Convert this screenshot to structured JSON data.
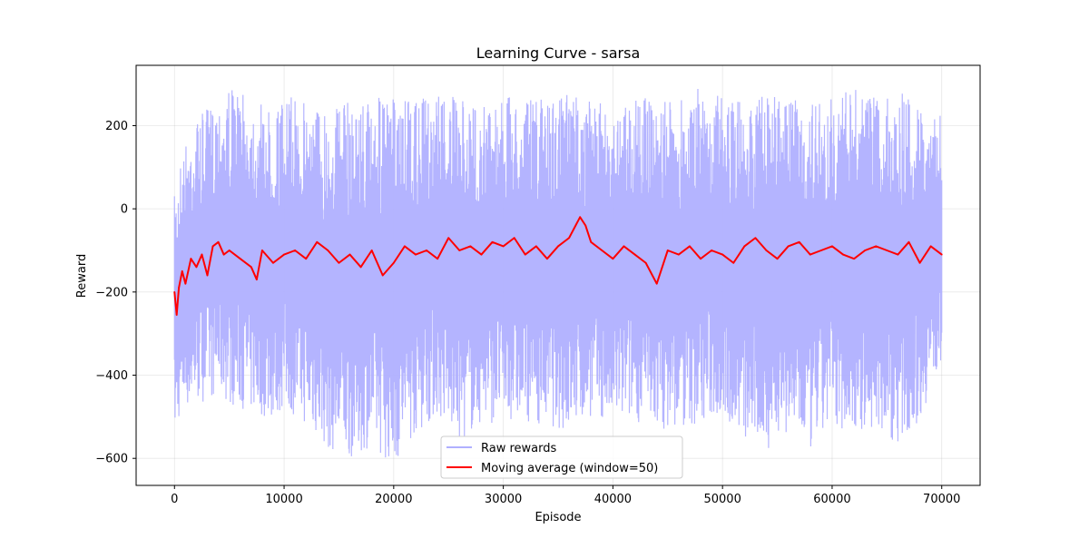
{
  "chart_data": {
    "type": "line",
    "title": "Learning Curve - sarsa",
    "xlabel": "Episode",
    "ylabel": "Reward",
    "xlim": [
      -3500,
      73500
    ],
    "ylim": [
      -665,
      345
    ],
    "xticks": [
      0,
      10000,
      20000,
      30000,
      40000,
      50000,
      60000,
      70000
    ],
    "xtick_labels": [
      "0",
      "10000",
      "20000",
      "30000",
      "40000",
      "50000",
      "60000",
      "70000"
    ],
    "yticks": [
      200,
      0,
      -200,
      -400,
      -600
    ],
    "ytick_labels": [
      "200",
      "0",
      "−200",
      "−400",
      "−600"
    ],
    "grid": true,
    "legend_position": "bottom-center",
    "series": [
      {
        "name": "Raw rewards",
        "color": "#b0b0ff",
        "style": "band",
        "x": [
          0,
          500,
          1000,
          2000,
          3000,
          4000,
          5000,
          6000,
          7000,
          8000,
          9000,
          10000,
          12000,
          14000,
          16000,
          18000,
          20000,
          22000,
          24000,
          26000,
          28000,
          30000,
          32000,
          34000,
          36000,
          38000,
          40000,
          42000,
          44000,
          46000,
          48000,
          50000,
          52000,
          54000,
          56000,
          58000,
          60000,
          62000,
          64000,
          66000,
          68000,
          70000
        ],
        "y_max": [
          30,
          120,
          160,
          220,
          240,
          270,
          300,
          280,
          260,
          250,
          240,
          270,
          265,
          250,
          260,
          270,
          265,
          255,
          290,
          260,
          250,
          275,
          260,
          270,
          285,
          260,
          245,
          280,
          255,
          260,
          295,
          270,
          260,
          280,
          265,
          260,
          265,
          290,
          270,
          290,
          260,
          225
        ],
        "y_min": [
          -550,
          -500,
          -480,
          -470,
          -460,
          -450,
          -470,
          -480,
          -490,
          -500,
          -510,
          -480,
          -520,
          -580,
          -600,
          -570,
          -620,
          -540,
          -500,
          -560,
          -520,
          -510,
          -510,
          -520,
          -540,
          -500,
          -520,
          -510,
          -530,
          -530,
          -520,
          -500,
          -560,
          -580,
          -540,
          -590,
          -520,
          -540,
          -540,
          -560,
          -510,
          -360
        ]
      },
      {
        "name": "Moving average (window=50)",
        "color": "#ff0000",
        "style": "line",
        "x": [
          0,
          200,
          400,
          700,
          1000,
          1500,
          2000,
          2500,
          3000,
          3500,
          4000,
          4500,
          5000,
          6000,
          7000,
          7500,
          8000,
          9000,
          10000,
          11000,
          12000,
          13000,
          14000,
          15000,
          16000,
          17000,
          18000,
          19000,
          20000,
          21000,
          22000,
          23000,
          24000,
          25000,
          26000,
          27000,
          28000,
          29000,
          30000,
          31000,
          32000,
          33000,
          34000,
          35000,
          36000,
          37000,
          37500,
          38000,
          39000,
          40000,
          41000,
          42000,
          43000,
          44000,
          45000,
          46000,
          47000,
          48000,
          49000,
          50000,
          51000,
          52000,
          53000,
          54000,
          55000,
          56000,
          57000,
          58000,
          59000,
          60000,
          61000,
          62000,
          63000,
          64000,
          65000,
          66000,
          67000,
          68000,
          69000,
          70000
        ],
        "y": [
          -200,
          -255,
          -190,
          -150,
          -180,
          -120,
          -140,
          -110,
          -160,
          -90,
          -80,
          -110,
          -100,
          -120,
          -140,
          -170,
          -100,
          -130,
          -110,
          -100,
          -120,
          -80,
          -100,
          -130,
          -110,
          -140,
          -100,
          -160,
          -130,
          -90,
          -110,
          -100,
          -120,
          -70,
          -100,
          -90,
          -110,
          -80,
          -90,
          -70,
          -110,
          -90,
          -120,
          -90,
          -70,
          -20,
          -40,
          -80,
          -100,
          -120,
          -90,
          -110,
          -130,
          -180,
          -100,
          -110,
          -90,
          -120,
          -100,
          -110,
          -130,
          -90,
          -70,
          -100,
          -120,
          -90,
          -80,
          -110,
          -100,
          -90,
          -110,
          -120,
          -100,
          -90,
          -100,
          -110,
          -80,
          -130,
          -90,
          -110
        ]
      }
    ]
  }
}
